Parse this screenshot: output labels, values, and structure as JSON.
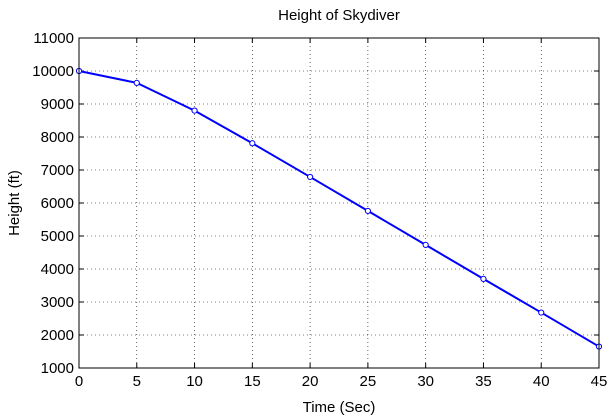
{
  "chart_data": {
    "type": "line",
    "title": "Height of Skydiver",
    "xlabel": "Time (Sec)",
    "ylabel": "Height (ft)",
    "xlim": [
      0,
      45
    ],
    "ylim": [
      1000,
      11000
    ],
    "xticks": [
      0,
      5,
      10,
      15,
      20,
      25,
      30,
      35,
      40,
      45
    ],
    "yticks": [
      1000,
      2000,
      3000,
      4000,
      5000,
      6000,
      7000,
      8000,
      9000,
      10000,
      11000
    ],
    "grid": true,
    "series": [
      {
        "color": "#0000ff",
        "marker": "circle",
        "x": [
          0,
          5,
          10,
          15,
          20,
          25,
          30,
          35,
          40,
          45
        ],
        "y": [
          10000,
          9640,
          8800,
          7810,
          6790,
          5760,
          4730,
          3700,
          2680,
          1650
        ]
      }
    ]
  }
}
